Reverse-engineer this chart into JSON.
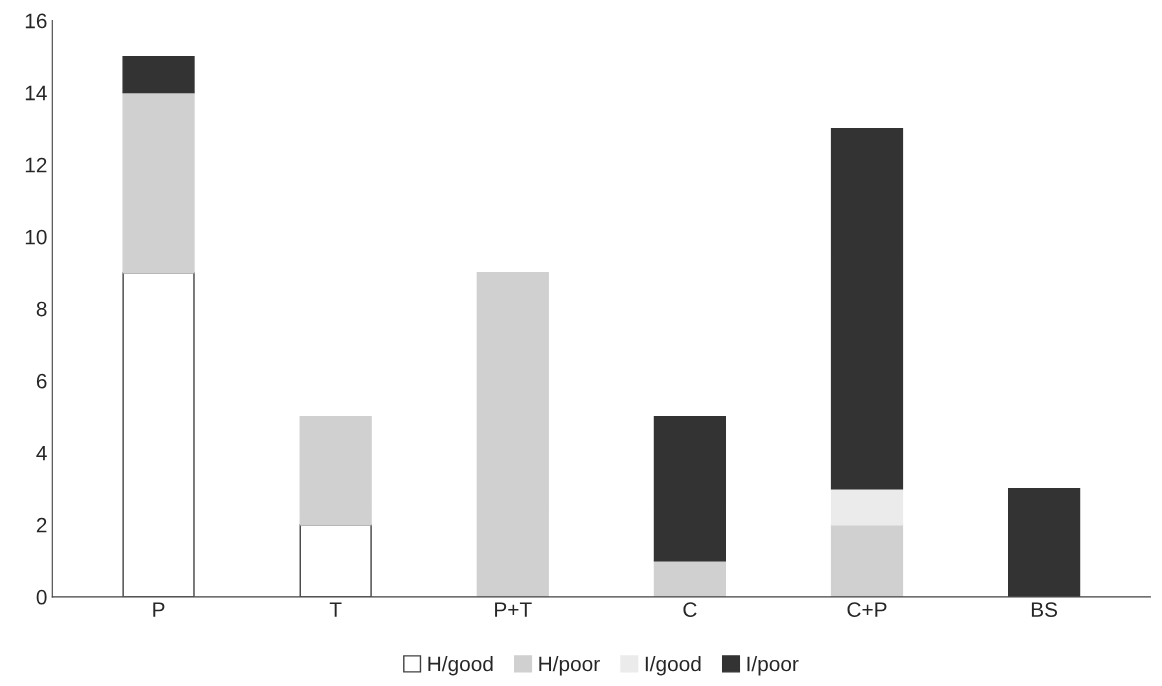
{
  "chart_data": {
    "type": "bar",
    "stacked": true,
    "categories": [
      "P",
      "T",
      "P+T",
      "C",
      "C+P",
      "BS"
    ],
    "series": [
      {
        "name": "H/good",
        "color": "#ffffff",
        "values": [
          9,
          2,
          null,
          null,
          null,
          null
        ]
      },
      {
        "name": "H/poor",
        "color": "#d0d0d0",
        "values": [
          5,
          3,
          9,
          1,
          2,
          null
        ]
      },
      {
        "name": "I/good",
        "color": "#ebebeb",
        "values": [
          null,
          null,
          null,
          null,
          1,
          null
        ]
      },
      {
        "name": "I/poor",
        "color": "#333333",
        "values": [
          1,
          null,
          null,
          4,
          10,
          3
        ]
      }
    ],
    "ylim": [
      0,
      16
    ],
    "yticks": [
      0,
      2,
      4,
      6,
      8,
      10,
      12,
      14,
      16
    ],
    "grid": false,
    "legend": "bottom"
  }
}
